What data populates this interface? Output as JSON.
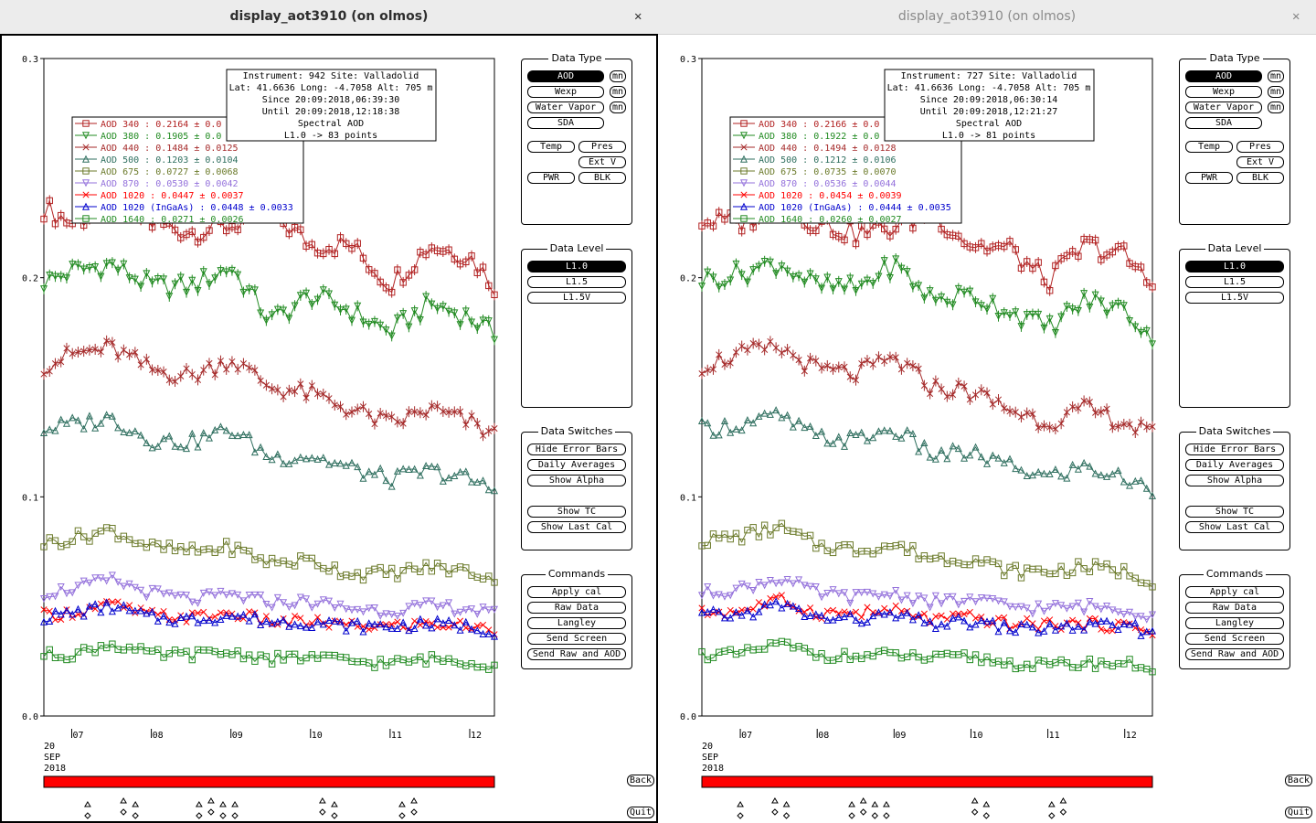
{
  "windows": [
    {
      "title": "display_aot3910 (on olmos)",
      "close": "✕",
      "info": [
        "Instrument: 942 Site: Valladolid",
        "Lat: 41.6636 Long: -4.7058 Alt: 705 m",
        "Since 20:09:2018,06:39:30",
        "Until 20:09:2018,12:18:38",
        "Spectral AOD",
        "L1.0 -> 83 points"
      ],
      "legend": [
        {
          "label": "AOD 340  : 0.2164 ± 0.0",
          "color": "#b22222"
        },
        {
          "label": "AOD 380  : 0.1905 ± 0.0",
          "color": "#228b22"
        },
        {
          "label": "AOD 440  : 0.1484 ± 0.0125",
          "color": "#a52a2a"
        },
        {
          "label": "AOD 500  : 0.1203 ± 0.0104",
          "color": "#2f6f5f"
        },
        {
          "label": "AOD 675  : 0.0727 ± 0.0068",
          "color": "#6b7a2a"
        },
        {
          "label": "AOD 870  : 0.0530 ± 0.0042",
          "color": "#9370db"
        },
        {
          "label": "AOD 1020  : 0.0447 ± 0.0037",
          "color": "#ff0000"
        },
        {
          "label": "AOD 1020 (InGaAs)  : 0.0448 ± 0.0033",
          "color": "#0000cd"
        },
        {
          "label": "AOD 1640  : 0.0271 ± 0.0026",
          "color": "#228b22"
        }
      ]
    },
    {
      "title": "display_aot3910 (on olmos)",
      "close": "✕",
      "info": [
        "Instrument: 727 Site: Valladolid",
        "Lat: 41.6636 Long: -4.7058 Alt: 705 m",
        "Since 20:09:2018,06:30:14",
        "Until 20:09:2018,12:21:27",
        "Spectral AOD",
        "L1.0 -> 81 points"
      ],
      "legend": [
        {
          "label": "AOD 340  : 0.2166 ± 0.0",
          "color": "#b22222"
        },
        {
          "label": "AOD 380  : 0.1922 ± 0.0",
          "color": "#228b22"
        },
        {
          "label": "AOD 440  : 0.1494 ± 0.0128",
          "color": "#a52a2a"
        },
        {
          "label": "AOD 500  : 0.1212 ± 0.0106",
          "color": "#2f6f5f"
        },
        {
          "label": "AOD 675  : 0.0735 ± 0.0070",
          "color": "#6b7a2a"
        },
        {
          "label": "AOD 870  : 0.0536 ± 0.0044",
          "color": "#9370db"
        },
        {
          "label": "AOD 1020  : 0.0454 ± 0.0039",
          "color": "#ff0000"
        },
        {
          "label": "AOD 1020 (InGaAs)  : 0.0444 ± 0.0035",
          "color": "#0000cd"
        },
        {
          "label": "AOD 1640  : 0.0260 ± 0.0027",
          "color": "#228b22"
        }
      ]
    }
  ],
  "y_ticks": [
    "0.3",
    "0.2",
    "0.1",
    "0.0"
  ],
  "x_ticks": [
    "07",
    "08",
    "09",
    "10",
    "11",
    "12"
  ],
  "date_label": [
    "20",
    "SEP",
    "2018"
  ],
  "panels": {
    "data_type": {
      "title": "Data Type",
      "buttons": [
        "AOD",
        "Wexp",
        "Water Vapor",
        "SDA",
        "Temp",
        "Pres",
        "Ext V",
        "PWR",
        "BLK"
      ],
      "mn": "mn"
    },
    "data_level": {
      "title": "Data Level",
      "buttons": [
        "L1.0",
        "L1.5",
        "L1.5V"
      ]
    },
    "data_switches": {
      "title": "Data Switches",
      "buttons": [
        "Hide Error Bars",
        "Daily Averages",
        "Show Alpha",
        "Show TC",
        "Show Last Cal"
      ]
    },
    "commands": {
      "title": "Commands",
      "buttons": [
        "Apply cal",
        "Raw Data",
        "Langley",
        "Send Screen",
        "Send Raw and AOD"
      ]
    }
  },
  "side_buttons": {
    "back": "Back",
    "quit": "Quit"
  },
  "chart_data": [
    {
      "type": "line",
      "title": "Spectral AOD",
      "ylim": [
        0.0,
        0.3
      ],
      "x_range_hours": [
        6.65,
        12.31
      ],
      "series": [
        {
          "name": "AOD 340",
          "mean": 0.2164,
          "x": [
            6.66,
            7.0,
            7.5,
            8.0,
            8.5,
            9.0,
            9.5,
            10.0,
            10.5,
            11.0,
            11.5,
            12.0,
            12.3
          ],
          "values": [
            0.232,
            0.225,
            0.233,
            0.225,
            0.221,
            0.224,
            0.23,
            0.215,
            0.215,
            0.197,
            0.215,
            0.21,
            0.197
          ]
        },
        {
          "name": "AOD 380",
          "mean": 0.1905,
          "x": [
            6.66,
            7.0,
            7.5,
            8.0,
            8.5,
            9.0,
            9.5,
            10.0,
            10.5,
            11.0,
            11.5,
            12.0,
            12.3
          ],
          "values": [
            0.198,
            0.203,
            0.206,
            0.196,
            0.196,
            0.205,
            0.18,
            0.192,
            0.185,
            0.175,
            0.188,
            0.182,
            0.174
          ]
        },
        {
          "name": "AOD 440",
          "mean": 0.1484,
          "x": [
            6.66,
            7.0,
            7.5,
            8.0,
            8.5,
            9.0,
            9.5,
            10.0,
            10.5,
            11.0,
            11.5,
            12.0,
            12.3
          ],
          "values": [
            0.16,
            0.165,
            0.168,
            0.158,
            0.155,
            0.163,
            0.15,
            0.147,
            0.14,
            0.133,
            0.14,
            0.134,
            0.128
          ]
        },
        {
          "name": "AOD 500",
          "mean": 0.1203,
          "x": [
            6.66,
            7.0,
            7.5,
            8.0,
            8.5,
            9.0,
            9.5,
            10.0,
            10.5,
            11.0,
            11.5,
            12.0,
            12.3
          ],
          "values": [
            0.131,
            0.133,
            0.136,
            0.126,
            0.125,
            0.131,
            0.118,
            0.119,
            0.113,
            0.108,
            0.112,
            0.108,
            0.103
          ]
        },
        {
          "name": "AOD 675",
          "mean": 0.0727,
          "x": [
            6.66,
            7.0,
            7.5,
            8.0,
            8.5,
            9.0,
            9.5,
            10.0,
            10.5,
            11.0,
            11.5,
            12.0,
            12.3
          ],
          "values": [
            0.079,
            0.081,
            0.085,
            0.077,
            0.075,
            0.077,
            0.07,
            0.071,
            0.065,
            0.065,
            0.068,
            0.066,
            0.063
          ]
        },
        {
          "name": "AOD 870",
          "mean": 0.053,
          "x": [
            6.66,
            7.0,
            7.5,
            8.0,
            8.5,
            9.0,
            9.5,
            10.0,
            10.5,
            11.0,
            11.5,
            12.0,
            12.3
          ],
          "values": [
            0.056,
            0.058,
            0.062,
            0.056,
            0.053,
            0.055,
            0.052,
            0.052,
            0.049,
            0.048,
            0.05,
            0.049,
            0.046
          ]
        },
        {
          "name": "AOD 1020",
          "mean": 0.0447,
          "x": [
            6.66,
            7.0,
            7.5,
            8.0,
            8.5,
            9.0,
            9.5,
            10.0,
            10.5,
            11.0,
            11.5,
            12.0,
            12.3
          ],
          "values": [
            0.046,
            0.047,
            0.051,
            0.046,
            0.045,
            0.047,
            0.043,
            0.043,
            0.041,
            0.041,
            0.042,
            0.041,
            0.039
          ]
        },
        {
          "name": "AOD 1020 (InGaAs)",
          "mean": 0.0448,
          "x": [
            6.66,
            7.0,
            7.5,
            8.0,
            8.5,
            9.0,
            9.5,
            10.0,
            10.5,
            11.0,
            11.5,
            12.0,
            12.3
          ],
          "values": [
            0.045,
            0.047,
            0.05,
            0.045,
            0.044,
            0.046,
            0.043,
            0.043,
            0.041,
            0.041,
            0.042,
            0.041,
            0.039
          ]
        },
        {
          "name": "AOD 1640",
          "mean": 0.0271,
          "x": [
            6.66,
            7.0,
            7.5,
            8.0,
            8.5,
            9.0,
            9.5,
            10.0,
            10.5,
            11.0,
            11.5,
            12.0,
            12.3
          ],
          "values": [
            0.028,
            0.028,
            0.033,
            0.028,
            0.028,
            0.029,
            0.026,
            0.027,
            0.025,
            0.024,
            0.026,
            0.025,
            0.023
          ]
        }
      ]
    },
    {
      "type": "line",
      "title": "Spectral AOD",
      "ylim": [
        0.0,
        0.3
      ],
      "x_range_hours": [
        6.5,
        12.36
      ],
      "series": [
        {
          "name": "AOD 340",
          "mean": 0.2166,
          "x": [
            6.5,
            7.0,
            7.5,
            8.0,
            8.5,
            9.0,
            9.5,
            10.0,
            10.5,
            11.0,
            11.5,
            12.0,
            12.36
          ],
          "values": [
            0.226,
            0.225,
            0.233,
            0.225,
            0.22,
            0.223,
            0.23,
            0.215,
            0.213,
            0.198,
            0.215,
            0.21,
            0.196
          ]
        },
        {
          "name": "AOD 380",
          "mean": 0.1922,
          "x": [
            6.5,
            7.0,
            7.5,
            8.0,
            8.5,
            9.0,
            9.5,
            10.0,
            10.5,
            11.0,
            11.5,
            12.0,
            12.36
          ],
          "values": [
            0.199,
            0.202,
            0.207,
            0.196,
            0.195,
            0.206,
            0.19,
            0.192,
            0.185,
            0.177,
            0.19,
            0.185,
            0.173
          ]
        },
        {
          "name": "AOD 440",
          "mean": 0.1494,
          "x": [
            6.5,
            7.0,
            7.5,
            8.0,
            8.5,
            9.0,
            9.5,
            10.0,
            10.5,
            11.0,
            11.5,
            12.0,
            12.36
          ],
          "values": [
            0.16,
            0.165,
            0.168,
            0.158,
            0.156,
            0.163,
            0.15,
            0.148,
            0.14,
            0.134,
            0.14,
            0.134,
            0.128
          ]
        },
        {
          "name": "AOD 500",
          "mean": 0.1212,
          "x": [
            6.5,
            7.0,
            7.5,
            8.0,
            8.5,
            9.0,
            9.5,
            10.0,
            10.5,
            11.0,
            11.5,
            12.0,
            12.36
          ],
          "values": [
            0.131,
            0.133,
            0.137,
            0.127,
            0.126,
            0.131,
            0.119,
            0.12,
            0.114,
            0.109,
            0.114,
            0.108,
            0.103
          ]
        },
        {
          "name": "AOD 675",
          "mean": 0.0735,
          "x": [
            6.5,
            7.0,
            7.5,
            8.0,
            8.5,
            9.0,
            9.5,
            10.0,
            10.5,
            11.0,
            11.5,
            12.0,
            12.36
          ],
          "values": [
            0.08,
            0.082,
            0.086,
            0.078,
            0.076,
            0.078,
            0.072,
            0.072,
            0.066,
            0.066,
            0.068,
            0.066,
            0.062
          ]
        },
        {
          "name": "AOD 870",
          "mean": 0.0536,
          "x": [
            6.5,
            7.0,
            7.5,
            8.0,
            8.5,
            9.0,
            9.5,
            10.0,
            10.5,
            11.0,
            11.5,
            12.0,
            12.36
          ],
          "values": [
            0.056,
            0.058,
            0.063,
            0.056,
            0.054,
            0.056,
            0.052,
            0.053,
            0.05,
            0.049,
            0.05,
            0.049,
            0.046
          ]
        },
        {
          "name": "AOD 1020",
          "mean": 0.0454,
          "x": [
            6.5,
            7.0,
            7.5,
            8.0,
            8.5,
            9.0,
            9.5,
            10.0,
            10.5,
            11.0,
            11.5,
            12.0,
            12.36
          ],
          "values": [
            0.047,
            0.048,
            0.053,
            0.047,
            0.047,
            0.048,
            0.044,
            0.045,
            0.042,
            0.042,
            0.042,
            0.041,
            0.039
          ]
        },
        {
          "name": "AOD 1020 (InGaAs)",
          "mean": 0.0444,
          "x": [
            6.5,
            7.0,
            7.5,
            8.0,
            8.5,
            9.0,
            9.5,
            10.0,
            10.5,
            11.0,
            11.5,
            12.0,
            12.36
          ],
          "values": [
            0.046,
            0.046,
            0.051,
            0.045,
            0.044,
            0.046,
            0.042,
            0.043,
            0.04,
            0.04,
            0.041,
            0.041,
            0.038
          ]
        },
        {
          "name": "AOD 1640",
          "mean": 0.026,
          "x": [
            6.5,
            7.0,
            7.5,
            8.0,
            8.5,
            9.0,
            9.5,
            10.0,
            10.5,
            11.0,
            11.5,
            12.0,
            12.36
          ],
          "values": [
            0.028,
            0.028,
            0.033,
            0.028,
            0.027,
            0.028,
            0.026,
            0.027,
            0.024,
            0.023,
            0.024,
            0.024,
            0.022
          ]
        }
      ]
    }
  ]
}
